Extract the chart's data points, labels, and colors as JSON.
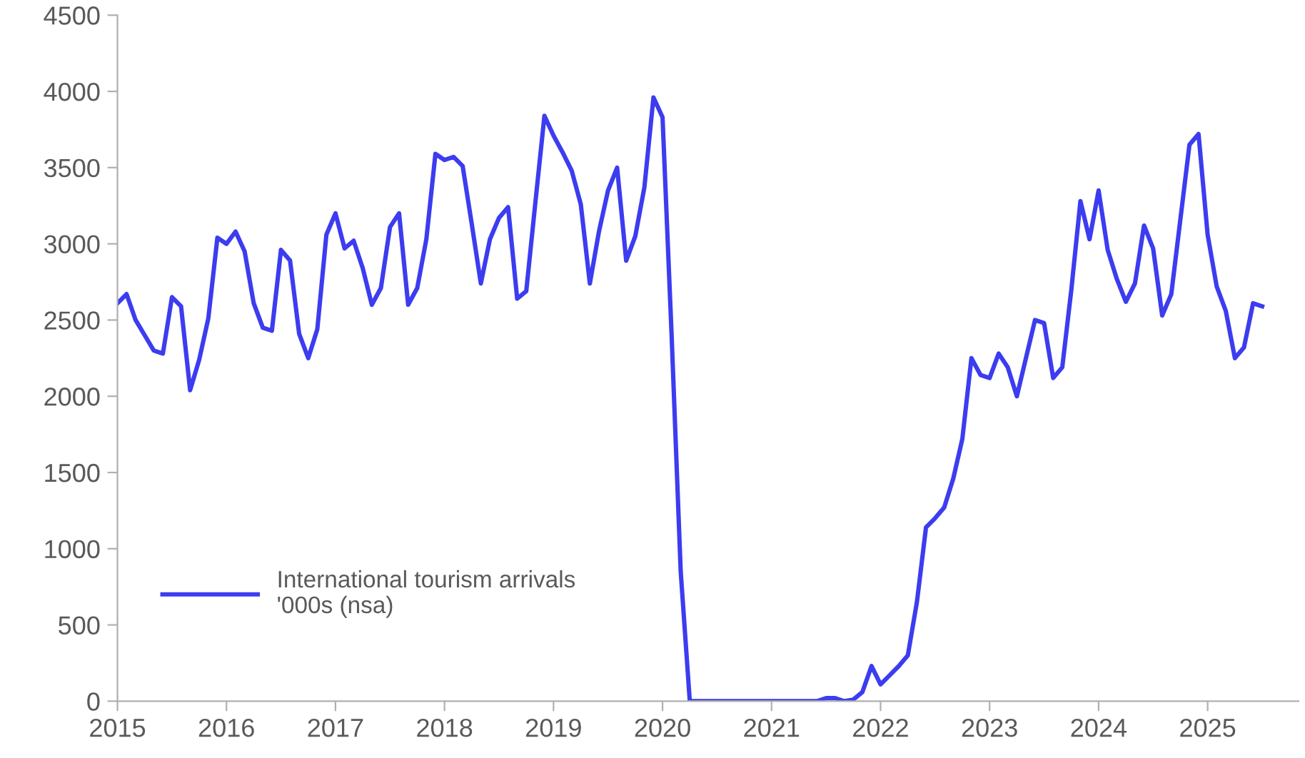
{
  "chart_data": {
    "type": "line",
    "x": [
      "2015-01",
      "2015-02",
      "2015-03",
      "2015-04",
      "2015-05",
      "2015-06",
      "2015-07",
      "2015-08",
      "2015-09",
      "2015-10",
      "2015-11",
      "2015-12",
      "2016-01",
      "2016-02",
      "2016-03",
      "2016-04",
      "2016-05",
      "2016-06",
      "2016-07",
      "2016-08",
      "2016-09",
      "2016-10",
      "2016-11",
      "2016-12",
      "2017-01",
      "2017-02",
      "2017-03",
      "2017-04",
      "2017-05",
      "2017-06",
      "2017-07",
      "2017-08",
      "2017-09",
      "2017-10",
      "2017-11",
      "2017-12",
      "2018-01",
      "2018-02",
      "2018-03",
      "2018-04",
      "2018-05",
      "2018-06",
      "2018-07",
      "2018-08",
      "2018-09",
      "2018-10",
      "2018-11",
      "2018-12",
      "2019-01",
      "2019-02",
      "2019-03",
      "2019-04",
      "2019-05",
      "2019-06",
      "2019-07",
      "2019-08",
      "2019-09",
      "2019-10",
      "2019-11",
      "2019-12",
      "2020-01",
      "2020-02",
      "2020-03",
      "2020-04",
      "2020-05",
      "2020-06",
      "2020-07",
      "2020-08",
      "2020-09",
      "2020-10",
      "2020-11",
      "2020-12",
      "2021-01",
      "2021-02",
      "2021-03",
      "2021-04",
      "2021-05",
      "2021-06",
      "2021-07",
      "2021-08",
      "2021-09",
      "2021-10",
      "2021-11",
      "2021-12",
      "2022-01",
      "2022-02",
      "2022-03",
      "2022-04",
      "2022-05",
      "2022-06",
      "2022-07",
      "2022-08",
      "2022-09",
      "2022-10",
      "2022-11",
      "2022-12",
      "2023-01",
      "2023-02",
      "2023-03",
      "2023-04",
      "2023-05",
      "2023-06",
      "2023-07",
      "2023-08",
      "2023-09",
      "2023-10",
      "2023-11",
      "2023-12",
      "2024-01",
      "2024-02",
      "2024-03",
      "2024-04",
      "2024-05",
      "2024-06",
      "2024-07",
      "2024-08",
      "2024-09",
      "2024-10",
      "2024-11",
      "2024-12",
      "2025-01",
      "2025-02",
      "2025-03",
      "2025-04",
      "2025-05",
      "2025-06",
      "2025-07"
    ],
    "series": [
      {
        "name": "International tourism arrivals\n'000s (nsa)",
        "color": "#3c3cf0",
        "values": [
          2610,
          2670,
          2500,
          2400,
          2300,
          2280,
          2650,
          2590,
          2040,
          2240,
          2510,
          3040,
          3000,
          3080,
          2950,
          2610,
          2450,
          2430,
          2960,
          2890,
          2410,
          2250,
          2440,
          3060,
          3200,
          2970,
          3020,
          2840,
          2600,
          2710,
          3110,
          3200,
          2600,
          2710,
          3030,
          3590,
          3550,
          3570,
          3510,
          3130,
          2740,
          3030,
          3170,
          3240,
          2640,
          2690,
          3270,
          3840,
          3710,
          3600,
          3480,
          3260,
          2740,
          3080,
          3350,
          3500,
          2890,
          3050,
          3370,
          3960,
          3830,
          2400,
          850,
          0,
          0,
          0,
          0,
          0,
          0,
          0,
          0,
          0,
          0,
          0,
          0,
          0,
          0,
          0,
          20,
          20,
          0,
          10,
          60,
          230,
          110,
          170,
          230,
          300,
          650,
          1140,
          1200,
          1270,
          1460,
          1720,
          2250,
          2140,
          2120,
          2280,
          2190,
          2000,
          2250,
          2500,
          2480,
          2120,
          2190,
          2700,
          3280,
          3030,
          3350,
          2960,
          2770,
          2620,
          2740,
          3120,
          2970,
          2530,
          2670,
          3160,
          3650,
          3720,
          3060,
          2720,
          2560,
          2250,
          2320,
          2610,
          2590
        ]
      }
    ],
    "xlim": [
      "2015-01",
      "2025-11"
    ],
    "xticks": [
      "2015",
      "2016",
      "2017",
      "2018",
      "2019",
      "2020",
      "2021",
      "2022",
      "2023",
      "2024",
      "2025"
    ],
    "ylim": [
      0,
      4500
    ],
    "yticks": [
      0,
      500,
      1000,
      1500,
      2000,
      2500,
      3000,
      3500,
      4000,
      4500
    ],
    "grid": false,
    "legend": "bottom left",
    "line_style": "solid",
    "marker": "none"
  }
}
